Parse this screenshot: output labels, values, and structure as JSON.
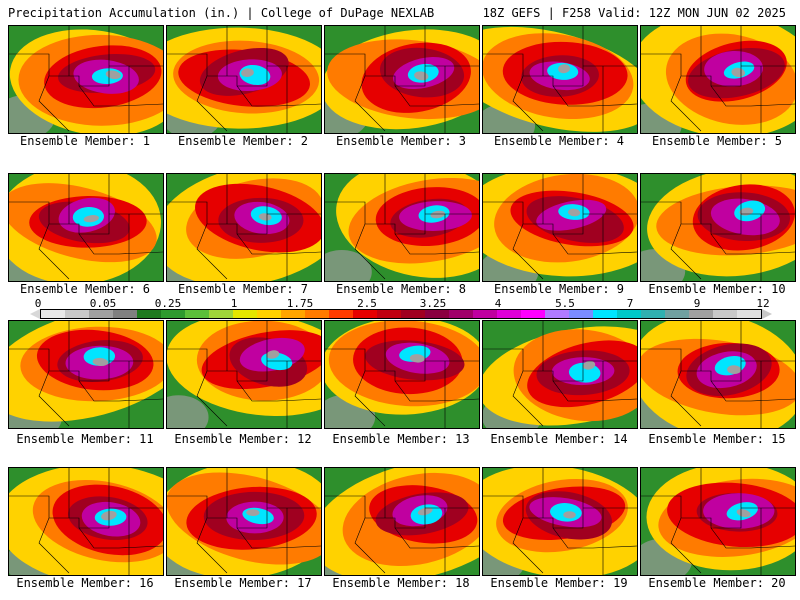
{
  "header": {
    "title_left": "Precipitation Accumulation (in.) | College of DuPage NEXLAB",
    "title_right": "18Z GEFS | F258 Valid: 12Z MON JUN 02 2025"
  },
  "legend": {
    "ticks": [
      "0",
      "0.05",
      "0.25",
      "1",
      "1.75",
      "2.5",
      "3.25",
      "4",
      "5.5",
      "7",
      "9",
      "12"
    ],
    "colors": [
      "#e8e8e8",
      "#c8c8c8",
      "#a0a0a0",
      "#808080",
      "#1e7a1e",
      "#2e9a2e",
      "#5cbf3a",
      "#9fd43a",
      "#e5e600",
      "#ffd200",
      "#ffa500",
      "#ff7b00",
      "#ff3b00",
      "#e60000",
      "#c00010",
      "#a00020",
      "#8a0040",
      "#a0006a",
      "#c000a0",
      "#e000d8",
      "#ff00ff",
      "#b07bff",
      "#7b8cff",
      "#00e5ff",
      "#00c8c8",
      "#30b0b0",
      "#70a0a0",
      "#a0a0a0",
      "#c8c8c8",
      "#e0e0e0"
    ]
  },
  "panels": [
    {
      "label": "Ensemble Member: 1"
    },
    {
      "label": "Ensemble Member: 2"
    },
    {
      "label": "Ensemble Member: 3"
    },
    {
      "label": "Ensemble Member: 4"
    },
    {
      "label": "Ensemble Member: 5"
    },
    {
      "label": "Ensemble Member: 6"
    },
    {
      "label": "Ensemble Member: 7"
    },
    {
      "label": "Ensemble Member: 8"
    },
    {
      "label": "Ensemble Member: 9"
    },
    {
      "label": "Ensemble Member: 10"
    },
    {
      "label": "Ensemble Member: 11"
    },
    {
      "label": "Ensemble Member: 12"
    },
    {
      "label": "Ensemble Member: 13"
    },
    {
      "label": "Ensemble Member: 14"
    },
    {
      "label": "Ensemble Member: 15"
    },
    {
      "label": "Ensemble Member: 16"
    },
    {
      "label": "Ensemble Member: 17"
    },
    {
      "label": "Ensemble Member: 18"
    },
    {
      "label": "Ensemble Member: 19"
    },
    {
      "label": "Ensemble Member: 20"
    }
  ]
}
